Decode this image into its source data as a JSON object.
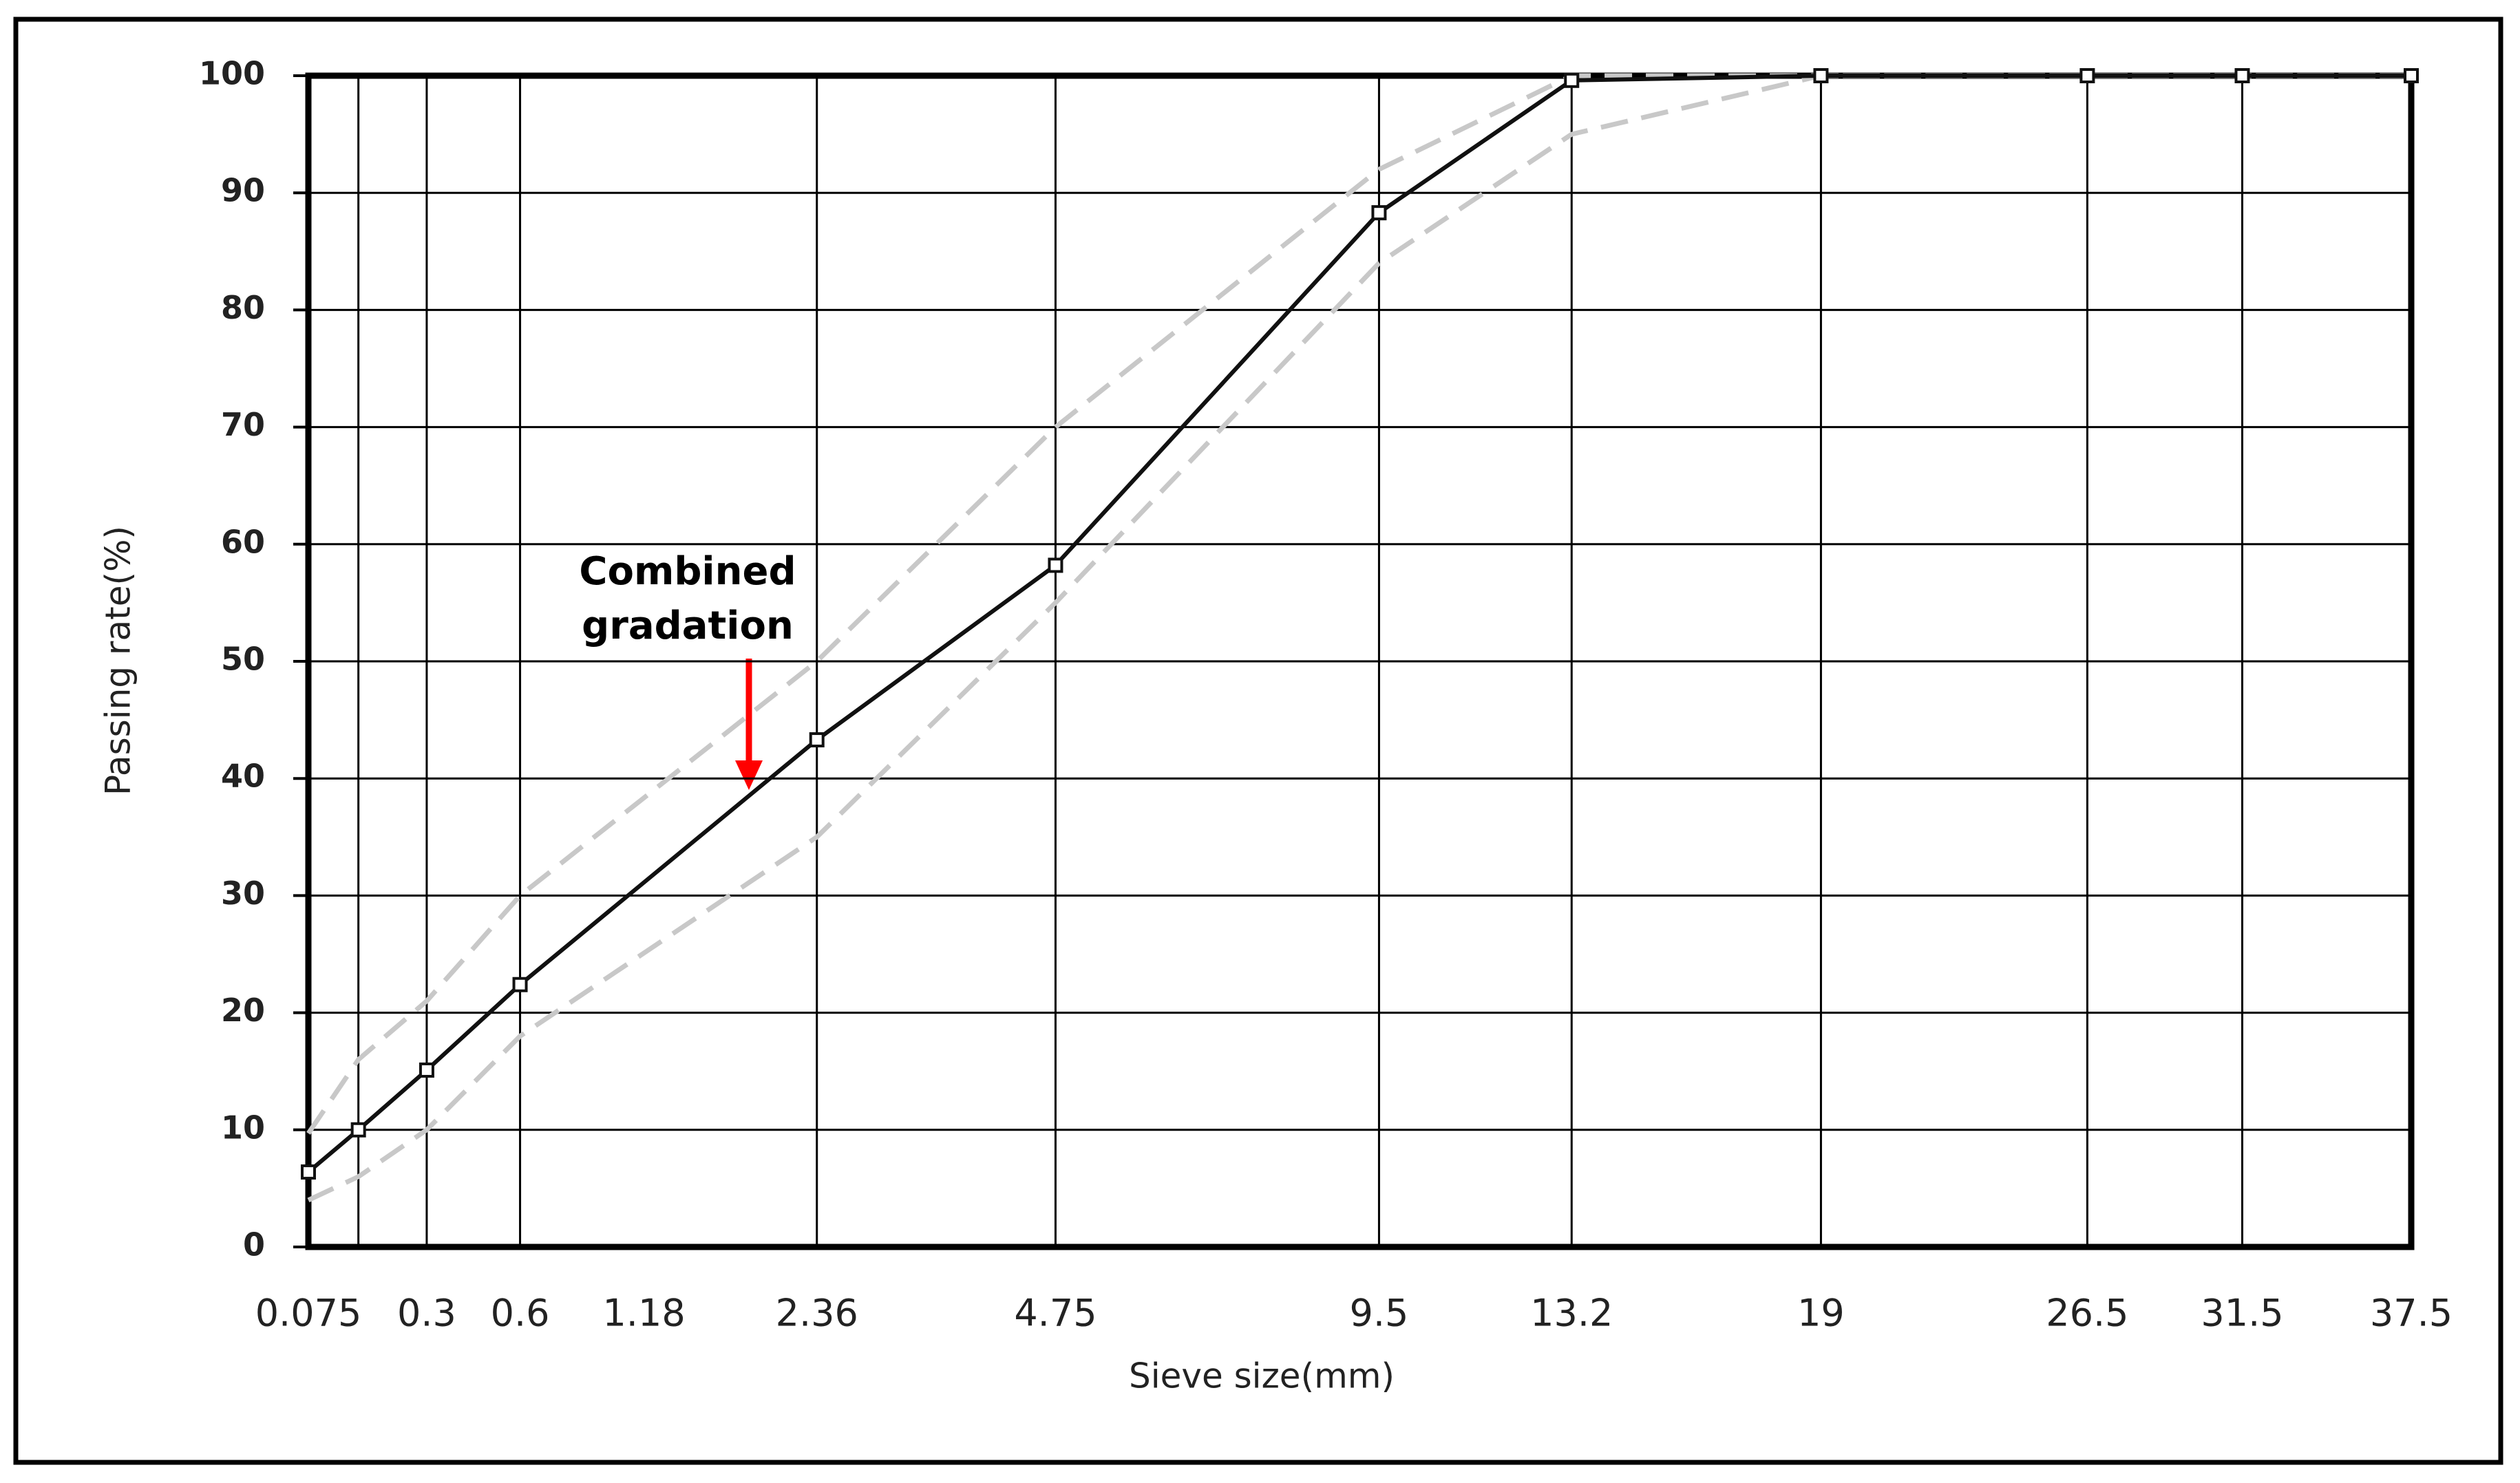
{
  "chart_data": {
    "type": "line",
    "x_label": "Sieve size(mm)",
    "y_label": "Passing rate(%)",
    "annotation": [
      "Combined",
      "gradation"
    ],
    "x": [
      0.075,
      0.15,
      0.3,
      0.6,
      2.36,
      4.75,
      9.5,
      13.2,
      19,
      26.5,
      31.5,
      37.5
    ],
    "series": [
      {
        "color": "#c8c8c8",
        "dashed": true,
        "markers": false,
        "values": [
          9.7,
          16,
          21,
          30,
          50,
          70,
          92,
          100,
          100,
          100,
          100,
          100
        ]
      },
      {
        "color": "#c8c8c8",
        "dashed": true,
        "markers": false,
        "values": [
          4,
          6,
          10,
          18,
          35,
          55,
          84,
          95,
          100,
          100,
          100,
          100
        ]
      },
      {
        "color": "#111111",
        "dashed": false,
        "markers": true,
        "values": [
          6.4,
          10,
          15.1,
          22.4,
          43.3,
          58.2,
          88.3,
          99.6,
          100,
          100,
          100,
          100
        ]
      }
    ],
    "xscale_power": 0.45,
    "xlim": [
      0.075,
      37.5
    ],
    "xticks": [
      0.075,
      0.3,
      0.6,
      1.18,
      2.36,
      4.75,
      9.5,
      13.2,
      19,
      26.5,
      31.5,
      37.5
    ],
    "x_grid": [
      0.15,
      0.3,
      0.6,
      2.36,
      4.75,
      9.5,
      13.2,
      19,
      26.5,
      31.5
    ],
    "ylim": [
      0,
      100
    ],
    "yticks": [
      0,
      10,
      20,
      30,
      40,
      50,
      60,
      70,
      80,
      90,
      100
    ],
    "grid": true
  }
}
